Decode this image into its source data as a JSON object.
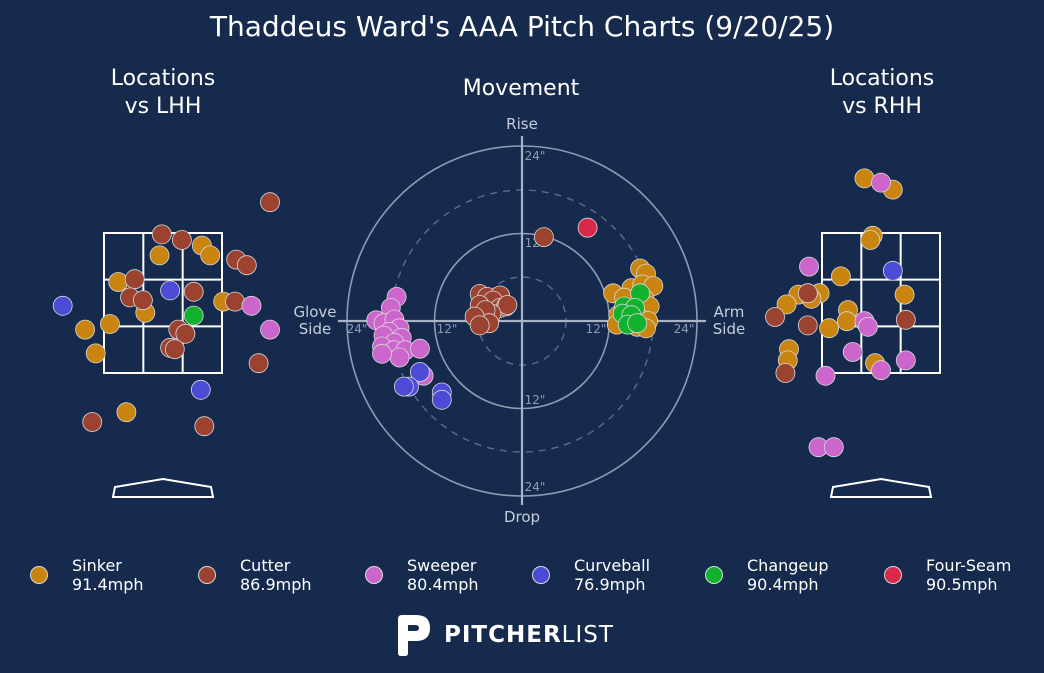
{
  "title": "Thaddeus Ward's AAA Pitch Charts (9/20/25)",
  "panels": {
    "lhh_title": "Locations\nvs LHH",
    "movement_title": "Movement",
    "rhh_title": "Locations\nvs RHH"
  },
  "movement_axes": {
    "top": "Rise",
    "bottom": "Drop",
    "left": "Glove\nSide",
    "right": "Arm\nSide",
    "ring_labels": [
      "12\"",
      "24\""
    ]
  },
  "colors": {
    "background": "#162a4d",
    "Sinker": "#c98510",
    "Cutter": "#9b4230",
    "Sweeper": "#cc66cc",
    "Curveball": "#4b4bd6",
    "Changeup": "#12b22f",
    "Four-Seam": "#d8294b"
  },
  "legend": [
    {
      "pitch": "Sinker",
      "speed": "91.4mph"
    },
    {
      "pitch": "Cutter",
      "speed": "86.9mph"
    },
    {
      "pitch": "Sweeper",
      "speed": "80.4mph"
    },
    {
      "pitch": "Curveball",
      "speed": "76.9mph"
    },
    {
      "pitch": "Changeup",
      "speed": "90.4mph"
    },
    {
      "pitch": "Four-Seam",
      "speed": "90.5mph"
    }
  ],
  "brand": {
    "bold": "PITCHER",
    "light": "LIST"
  },
  "chart_data": [
    {
      "type": "scatter",
      "title": "Locations vs LHH",
      "units": "strike zone widths from plate center (x) and zone heights from zone center (y)",
      "points": [
        {
          "pitch": "Sinker",
          "x": -0.38,
          "y": 0.15
        },
        {
          "pitch": "Sinker",
          "x": -0.03,
          "y": 0.34
        },
        {
          "pitch": "Sinker",
          "x": 0.33,
          "y": 0.41
        },
        {
          "pitch": "Sinker",
          "x": 0.4,
          "y": 0.34
        },
        {
          "pitch": "Sinker",
          "x": -0.15,
          "y": -0.07
        },
        {
          "pitch": "Sinker",
          "x": 0.51,
          "y": 0.01
        },
        {
          "pitch": "Sinker",
          "x": -0.45,
          "y": -0.15
        },
        {
          "pitch": "Sinker",
          "x": -0.66,
          "y": -0.19
        },
        {
          "pitch": "Sinker",
          "x": -0.57,
          "y": -0.36
        },
        {
          "pitch": "Sinker",
          "x": -0.31,
          "y": -0.78
        },
        {
          "pitch": "Cutter",
          "x": -0.01,
          "y": 0.49
        },
        {
          "pitch": "Cutter",
          "x": 0.16,
          "y": 0.45
        },
        {
          "pitch": "Cutter",
          "x": -0.24,
          "y": 0.17
        },
        {
          "pitch": "Cutter",
          "x": -0.28,
          "y": 0.04
        },
        {
          "pitch": "Cutter",
          "x": -0.17,
          "y": 0.02
        },
        {
          "pitch": "Cutter",
          "x": 0.26,
          "y": 0.08
        },
        {
          "pitch": "Cutter",
          "x": 0.61,
          "y": 0.01
        },
        {
          "pitch": "Cutter",
          "x": 0.62,
          "y": 0.31
        },
        {
          "pitch": "Cutter",
          "x": 0.71,
          "y": 0.27
        },
        {
          "pitch": "Cutter",
          "x": 0.94,
          "y": 0.72
        },
        {
          "pitch": "Cutter",
          "x": 0.13,
          "y": -0.19
        },
        {
          "pitch": "Cutter",
          "x": 0.19,
          "y": -0.22
        },
        {
          "pitch": "Cutter",
          "x": 0.06,
          "y": -0.32
        },
        {
          "pitch": "Cutter",
          "x": 0.1,
          "y": -0.33
        },
        {
          "pitch": "Cutter",
          "x": 0.81,
          "y": -0.43
        },
        {
          "pitch": "Cutter",
          "x": 0.35,
          "y": -0.88
        },
        {
          "pitch": "Cutter",
          "x": -0.6,
          "y": -0.85
        },
        {
          "pitch": "Sweeper",
          "x": 0.75,
          "y": -0.02
        },
        {
          "pitch": "Sweeper",
          "x": 0.96,
          "y": -0.19
        },
        {
          "pitch": "Curveball",
          "x": -0.85,
          "y": -0.02
        },
        {
          "pitch": "Curveball",
          "x": 0.06,
          "y": 0.09
        },
        {
          "pitch": "Curveball",
          "x": 0.32,
          "y": -0.62
        },
        {
          "pitch": "Changeup",
          "x": 0.26,
          "y": -0.09
        }
      ]
    },
    {
      "type": "scatter",
      "title": "Movement",
      "xlabel": "Glove Side / Arm Side",
      "ylabel": "Drop / Rise",
      "unit": "inches",
      "xlim": [
        -24,
        24
      ],
      "ylim": [
        -24,
        24
      ],
      "rings": [
        12,
        24
      ],
      "points": [
        {
          "pitch": "Sinker",
          "x": 16.2,
          "y": 7.2
        },
        {
          "pitch": "Sinker",
          "x": 17.0,
          "y": 6.5
        },
        {
          "pitch": "Sinker",
          "x": 15.0,
          "y": 4.5
        },
        {
          "pitch": "Sinker",
          "x": 16.5,
          "y": 5.0
        },
        {
          "pitch": "Sinker",
          "x": 18.0,
          "y": 4.8
        },
        {
          "pitch": "Sinker",
          "x": 12.5,
          "y": 3.8
        },
        {
          "pitch": "Sinker",
          "x": 14.0,
          "y": 3.2
        },
        {
          "pitch": "Sinker",
          "x": 16.8,
          "y": 3.0
        },
        {
          "pitch": "Sinker",
          "x": 17.5,
          "y": 2.0
        },
        {
          "pitch": "Sinker",
          "x": 13.5,
          "y": 1.0
        },
        {
          "pitch": "Sinker",
          "x": 16.0,
          "y": 0.5
        },
        {
          "pitch": "Sinker",
          "x": 17.3,
          "y": 0.0
        },
        {
          "pitch": "Sinker",
          "x": 13.2,
          "y": 0.8
        },
        {
          "pitch": "Sinker",
          "x": 15.0,
          "y": -0.2
        },
        {
          "pitch": "Sinker",
          "x": 15.8,
          "y": -0.8
        },
        {
          "pitch": "Sinker",
          "x": 13.0,
          "y": -0.5
        },
        {
          "pitch": "Sinker",
          "x": 17.0,
          "y": -1.0
        },
        {
          "pitch": "Cutter",
          "x": 3.0,
          "y": 11.5
        },
        {
          "pitch": "Cutter",
          "x": -5.8,
          "y": 3.7
        },
        {
          "pitch": "Cutter",
          "x": -4.8,
          "y": 3.3
        },
        {
          "pitch": "Cutter",
          "x": -3.0,
          "y": 3.5
        },
        {
          "pitch": "Cutter",
          "x": -4.0,
          "y": 2.8
        },
        {
          "pitch": "Cutter",
          "x": -5.8,
          "y": 2.2
        },
        {
          "pitch": "Cutter",
          "x": -3.0,
          "y": 1.8
        },
        {
          "pitch": "Cutter",
          "x": -2.2,
          "y": 2.0
        },
        {
          "pitch": "Cutter",
          "x": -2.0,
          "y": 2.2
        },
        {
          "pitch": "Cutter",
          "x": -4.2,
          "y": 1.0
        },
        {
          "pitch": "Cutter",
          "x": -5.0,
          "y": 1.5
        },
        {
          "pitch": "Cutter",
          "x": -4.5,
          "y": -0.3
        },
        {
          "pitch": "Cutter",
          "x": -6.5,
          "y": 0.6
        },
        {
          "pitch": "Cutter",
          "x": -5.8,
          "y": -0.6
        },
        {
          "pitch": "Sweeper",
          "x": -17.2,
          "y": 3.3
        },
        {
          "pitch": "Sweeper",
          "x": -18.0,
          "y": 1.8
        },
        {
          "pitch": "Sweeper",
          "x": -20.0,
          "y": 0.1
        },
        {
          "pitch": "Sweeper",
          "x": -19.0,
          "y": -0.3
        },
        {
          "pitch": "Sweeper",
          "x": -17.5,
          "y": 0.2
        },
        {
          "pitch": "Sweeper",
          "x": -16.8,
          "y": -1.0
        },
        {
          "pitch": "Sweeper",
          "x": -18.2,
          "y": -1.5
        },
        {
          "pitch": "Sweeper",
          "x": -19.0,
          "y": -2.0
        },
        {
          "pitch": "Sweeper",
          "x": -16.5,
          "y": -2.3
        },
        {
          "pitch": "Sweeper",
          "x": -17.5,
          "y": -3.0
        },
        {
          "pitch": "Sweeper",
          "x": -19.2,
          "y": -3.5
        },
        {
          "pitch": "Sweeper",
          "x": -17.5,
          "y": -4.0
        },
        {
          "pitch": "Sweeper",
          "x": -16.0,
          "y": -4.0
        },
        {
          "pitch": "Sweeper",
          "x": -14.0,
          "y": -3.8
        },
        {
          "pitch": "Sweeper",
          "x": -16.8,
          "y": -5.0
        },
        {
          "pitch": "Sweeper",
          "x": -13.5,
          "y": -7.5
        },
        {
          "pitch": "Sweeper",
          "x": -19.2,
          "y": -4.5
        },
        {
          "pitch": "Curveball",
          "x": -14.0,
          "y": -7.0
        },
        {
          "pitch": "Curveball",
          "x": -15.5,
          "y": -9.0
        },
        {
          "pitch": "Curveball",
          "x": -16.2,
          "y": -9.0
        },
        {
          "pitch": "Curveball",
          "x": -11.0,
          "y": -9.8
        },
        {
          "pitch": "Curveball",
          "x": -11.0,
          "y": -10.8
        },
        {
          "pitch": "Changeup",
          "x": 16.2,
          "y": 3.8
        },
        {
          "pitch": "Changeup",
          "x": 14.0,
          "y": 2.0
        },
        {
          "pitch": "Changeup",
          "x": 15.5,
          "y": 1.8
        },
        {
          "pitch": "Changeup",
          "x": 13.8,
          "y": 1.0
        },
        {
          "pitch": "Changeup",
          "x": 15.0,
          "y": 0.8
        },
        {
          "pitch": "Changeup",
          "x": 14.5,
          "y": -0.5
        },
        {
          "pitch": "Changeup",
          "x": 15.8,
          "y": -0.3
        },
        {
          "pitch": "Four-Seam",
          "x": 9.0,
          "y": 12.8
        }
      ]
    },
    {
      "type": "scatter",
      "title": "Locations vs RHH",
      "units": "strike zone widths from plate center (x) and zone heights from zone center (y)",
      "points": [
        {
          "pitch": "Sinker",
          "x": -0.14,
          "y": 0.89
        },
        {
          "pitch": "Sinker",
          "x": 0.1,
          "y": 0.81
        },
        {
          "pitch": "Sinker",
          "x": -0.07,
          "y": 0.48
        },
        {
          "pitch": "Sinker",
          "x": -0.09,
          "y": 0.45
        },
        {
          "pitch": "Sinker",
          "x": -0.34,
          "y": 0.19
        },
        {
          "pitch": "Sinker",
          "x": -0.52,
          "y": 0.07
        },
        {
          "pitch": "Sinker",
          "x": -0.7,
          "y": 0.06
        },
        {
          "pitch": "Sinker",
          "x": -0.59,
          "y": 0.03
        },
        {
          "pitch": "Sinker",
          "x": -0.8,
          "y": -0.01
        },
        {
          "pitch": "Sinker",
          "x": 0.2,
          "y": 0.06
        },
        {
          "pitch": "Sinker",
          "x": -0.28,
          "y": -0.05
        },
        {
          "pitch": "Sinker",
          "x": -0.29,
          "y": -0.13
        },
        {
          "pitch": "Sinker",
          "x": -0.44,
          "y": -0.18
        },
        {
          "pitch": "Sinker",
          "x": -0.78,
          "y": -0.33
        },
        {
          "pitch": "Sinker",
          "x": -0.79,
          "y": -0.41
        },
        {
          "pitch": "Sinker",
          "x": -0.05,
          "y": -0.43
        },
        {
          "pitch": "Cutter",
          "x": -0.62,
          "y": 0.07
        },
        {
          "pitch": "Cutter",
          "x": -0.62,
          "y": -0.16
        },
        {
          "pitch": "Cutter",
          "x": 0.21,
          "y": -0.12
        },
        {
          "pitch": "Cutter",
          "x": -0.81,
          "y": -0.5
        },
        {
          "pitch": "Cutter",
          "x": -0.95,
          "y": -0.1
        },
        {
          "pitch": "Sweeper",
          "x": 0.0,
          "y": 0.86
        },
        {
          "pitch": "Sweeper",
          "x": -0.61,
          "y": 0.26
        },
        {
          "pitch": "Sweeper",
          "x": -0.14,
          "y": -0.13
        },
        {
          "pitch": "Sweeper",
          "x": -0.11,
          "y": -0.17
        },
        {
          "pitch": "Sweeper",
          "x": -0.24,
          "y": -0.35
        },
        {
          "pitch": "Sweeper",
          "x": 0.21,
          "y": -0.41
        },
        {
          "pitch": "Sweeper",
          "x": 0.0,
          "y": -0.48
        },
        {
          "pitch": "Sweeper",
          "x": -0.47,
          "y": -0.52
        },
        {
          "pitch": "Sweeper",
          "x": -0.53,
          "y": -1.03
        },
        {
          "pitch": "Sweeper",
          "x": -0.4,
          "y": -1.03
        },
        {
          "pitch": "Curveball",
          "x": 0.1,
          "y": 0.23
        }
      ]
    }
  ]
}
